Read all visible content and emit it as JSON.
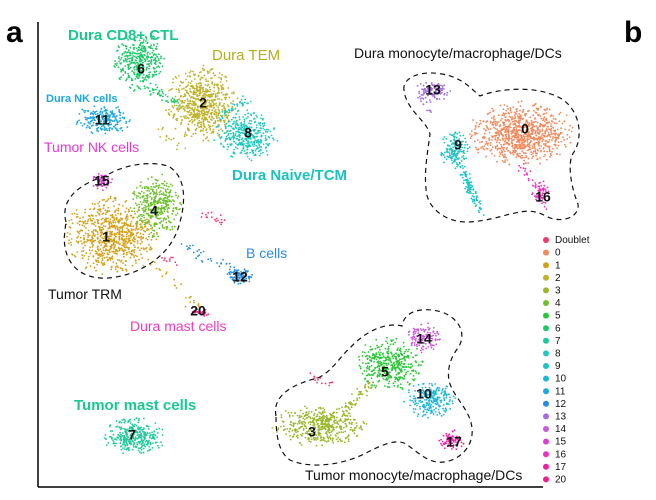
{
  "panels": [
    "a",
    "b"
  ],
  "chart_data": {
    "type": "scatter",
    "title": "",
    "xlabel": "",
    "ylabel": "",
    "grid": false,
    "legend_placement": "right",
    "clusters": [
      {
        "id": "0",
        "color": "#F08A5D"
      },
      {
        "id": "1",
        "color": "#D4A017"
      },
      {
        "id": "2",
        "color": "#BFB22A"
      },
      {
        "id": "3",
        "color": "#9AB62A"
      },
      {
        "id": "4",
        "color": "#6CC02A"
      },
      {
        "id": "5",
        "color": "#2CC63A"
      },
      {
        "id": "6",
        "color": "#1FC86A"
      },
      {
        "id": "7",
        "color": "#1CC99A"
      },
      {
        "id": "8",
        "color": "#1FC9BE"
      },
      {
        "id": "9",
        "color": "#1CC1C6"
      },
      {
        "id": "10",
        "color": "#1CB6D8"
      },
      {
        "id": "11",
        "color": "#1CA8DC"
      },
      {
        "id": "12",
        "color": "#2A8CE0"
      },
      {
        "id": "13",
        "color": "#A56CE0"
      },
      {
        "id": "14",
        "color": "#C65AD8"
      },
      {
        "id": "15",
        "color": "#DA3FD0"
      },
      {
        "id": "16",
        "color": "#E832C0"
      },
      {
        "id": "17",
        "color": "#EE1FA8"
      },
      {
        "id": "20",
        "color": "#F01E8C"
      }
    ],
    "legend": [
      "Doublet",
      "0",
      "1",
      "2",
      "3",
      "4",
      "5",
      "6",
      "7",
      "8",
      "9",
      "10",
      "11",
      "12",
      "13",
      "14",
      "15",
      "16",
      "17",
      "20"
    ],
    "doublet_color": "#F0396A",
    "annotations": [
      {
        "text": "Dura CD8+ CTL",
        "color": "#1BC88E"
      },
      {
        "text": "Dura TEM",
        "color": "#B5AE22"
      },
      {
        "text": "Dura NK cells",
        "color": "#1CA8DC"
      },
      {
        "text": "Tumor NK cells",
        "color": "#E13BD2"
      },
      {
        "text": "Dura Naive/TCM",
        "color": "#1CC2C0"
      },
      {
        "text": "B cells",
        "color": "#2A8CE0"
      },
      {
        "text": "Tumor TRM",
        "color": "#111111"
      },
      {
        "text": "Dura mast cells",
        "color": "#E83DBE"
      },
      {
        "text": "Tumor mast cells",
        "color": "#1BC894"
      },
      {
        "text": "Dura monocyte/macrophage/DCs",
        "color": "#111111"
      },
      {
        "text": "Tumor monocyte/macrophage/DCs",
        "color": "#111111"
      }
    ]
  }
}
